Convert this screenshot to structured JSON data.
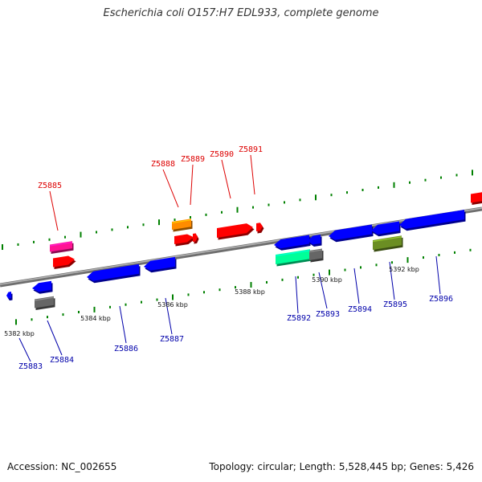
{
  "title": "Escherichia coli O157:H7 EDL933, complete genome",
  "footer": {
    "accession": "Accession: NC_002655",
    "summary": "Topology: circular; Length: 5,528,445 bp; Genes: 5,426"
  },
  "colors": {
    "backbone": "#808080",
    "tick": "#008000",
    "label_forward": "#dd0000",
    "label_reverse": "#0000aa",
    "red": "#ff0000",
    "blue": "#0000ff",
    "orange": "#ff8c00",
    "magenta": "#ff1493",
    "gray": "#666666",
    "green": "#00ff99",
    "olive": "#6b8e23"
  },
  "kbp_labels": [
    "5382 kbp",
    "5384 kbp",
    "5386 kbp",
    "5388 kbp",
    "5390 kbp",
    "5392 kbp"
  ],
  "genes_forward": [
    "Z5885",
    "Z5888",
    "Z5889",
    "Z5890",
    "Z5891"
  ],
  "genes_reverse": [
    "Z5883",
    "Z5884",
    "Z5886",
    "Z5887",
    "Z5892",
    "Z5893",
    "Z5894",
    "Z5895",
    "Z5896"
  ]
}
